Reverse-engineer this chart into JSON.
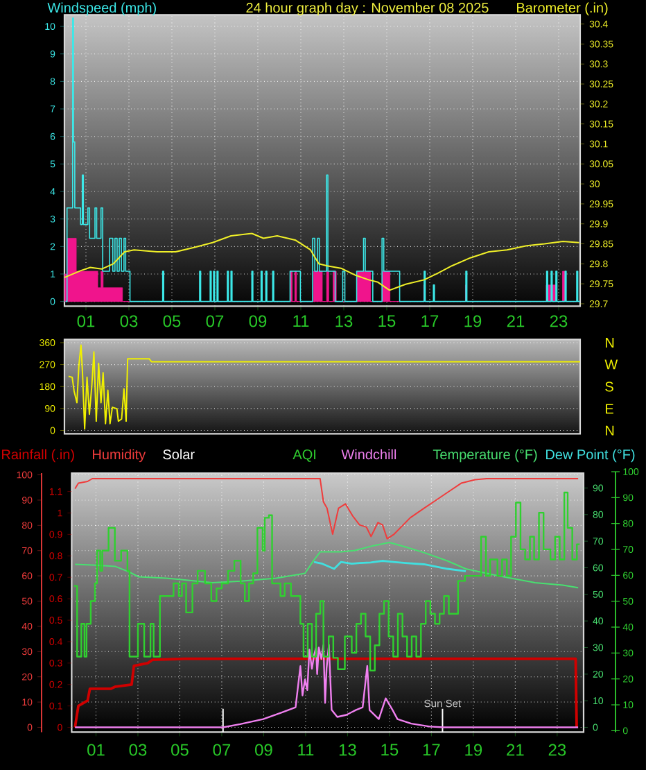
{
  "chart_data": [
    {
      "type": "line",
      "title": "24 hour graph day : November 08 2025",
      "ylabel": "Windspeed (mph)",
      "y2label": "Barometer (.in)",
      "xlim": [
        0,
        24
      ],
      "xticks": [
        {
          "value": 1,
          "label": "01"
        },
        {
          "value": 3,
          "label": "03"
        },
        {
          "value": 5,
          "label": "05"
        },
        {
          "value": 7,
          "label": "07"
        },
        {
          "value": 9,
          "label": "09"
        },
        {
          "value": 11,
          "label": "11"
        },
        {
          "value": 13,
          "label": "13"
        },
        {
          "value": 15,
          "label": "15"
        },
        {
          "value": 17,
          "label": "17"
        },
        {
          "value": 19,
          "label": "19"
        },
        {
          "value": 21,
          "label": "21"
        },
        {
          "value": 23,
          "label": "23"
        }
      ],
      "ylim": [
        -0.17,
        10.42
      ],
      "yticks": [
        0,
        1,
        2,
        3,
        4,
        5,
        6,
        7,
        8,
        9,
        10
      ],
      "y2lim": [
        29.694,
        30.423
      ],
      "y2ticks": [
        29.7,
        29.75,
        29.8,
        29.85,
        29.9,
        29.95,
        30,
        30.05,
        30.1,
        30.15,
        30.2,
        30.25,
        30.3,
        30.35,
        30.4
      ],
      "grid": true,
      "series": [
        {
          "type": "area",
          "color": "#f0148c",
          "x": [
            0,
            0,
            0.12,
            0.12,
            0.55,
            0.55,
            1.55,
            1.55,
            1.7,
            1.7,
            1.8,
            1.8,
            2.7,
            2.7,
            10.5,
            10.5,
            10.6,
            10.6,
            10.72,
            10.72,
            10.8,
            10.8,
            11.6,
            11.6,
            12.0,
            12.0,
            12.2,
            12.2,
            12.3,
            12.3,
            12.5,
            12.5,
            12.65,
            12.65,
            13.6,
            13.6,
            14.25,
            14.25,
            14.8,
            14.8,
            15.15,
            15.15,
            16.72,
            16.72,
            16.77,
            16.77,
            18.66,
            18.66,
            18.71,
            18.71,
            22.42,
            22.42,
            22.9,
            22.9,
            23.18,
            23.18,
            23.32,
            23.32,
            24
          ],
          "values": [
            0,
            1.0,
            1.0,
            2.3,
            2.3,
            1.1,
            1.1,
            0.5,
            0.5,
            1.1,
            1.1,
            0.5,
            0.5,
            0,
            0,
            1.1,
            1.1,
            0,
            0,
            1.1,
            1.1,
            0,
            0,
            1.1,
            1.1,
            0,
            0,
            1.1,
            1.1,
            0,
            0,
            1.1,
            1.1,
            0,
            0,
            1.1,
            1.1,
            0,
            0,
            1.1,
            1.1,
            0,
            0,
            0.6,
            0.6,
            0,
            0,
            0.6,
            0.6,
            0,
            0,
            0.6,
            0.6,
            0,
            0,
            1.1,
            1.1,
            0,
            0
          ]
        },
        {
          "type": "step",
          "color": "#3ce8e8",
          "x": [
            0.05,
            0.12,
            0.38,
            0.42,
            0.48,
            0.75,
            0.83,
            0.88,
            1.09,
            1.17,
            1.42,
            1.5,
            1.7,
            1.78,
            2.1,
            2.25,
            2.35,
            2.45,
            2.55,
            2.65,
            2.77,
            2.85,
            3.05,
            4.57,
            4.62,
            6.29,
            6.34,
            6.78,
            6.83,
            6.94,
            6.99,
            7.1,
            7.15,
            7.58,
            7.63,
            7.75,
            7.8,
            8.72,
            8.77,
            9.15,
            9.2,
            9.37,
            9.42,
            9.69,
            9.74,
            10.5,
            10.98,
            11.55,
            11.65,
            11.78,
            11.86,
            12.2,
            12.26,
            12.6,
            12.95,
            13.05,
            13.6,
            13.92,
            14.0,
            14.35,
            14.78,
            14.86,
            15.6,
            16.74,
            16.79,
            17.17,
            17.22,
            18.68,
            18.73,
            22.44,
            22.49,
            22.65,
            22.7,
            22.87,
            22.92,
            23.3,
            23.35,
            23.84,
            23.89,
            24
          ],
          "values": [
            0,
            3.4,
            10.3,
            5.8,
            3.4,
            2.8,
            4.6,
            2.8,
            3.4,
            2.3,
            3.4,
            2.3,
            3.4,
            1.1,
            2.3,
            1.1,
            2.3,
            1.1,
            2.3,
            1.1,
            2.3,
            1.1,
            0,
            1.1,
            0,
            1.1,
            0,
            1.1,
            0,
            1.1,
            0,
            1.1,
            0,
            1.1,
            0,
            1.1,
            0,
            1.1,
            0,
            1.1,
            0,
            1.1,
            0,
            1.1,
            0,
            1.1,
            0,
            2.3,
            1.1,
            2.3,
            1.1,
            4.6,
            1.1,
            0,
            1.1,
            0,
            1.1,
            2.3,
            1.1,
            0,
            2.3,
            1.1,
            0,
            1.1,
            0,
            0.6,
            0,
            1.1,
            0,
            1.1,
            0,
            1.1,
            0,
            1.1,
            0,
            1.1,
            0,
            1.1,
            0,
            0
          ]
        },
        {
          "type": "line",
          "axis": "y2",
          "color": "#f0f028",
          "x": [
            0.01,
            0.76,
            1.2,
            1.73,
            2.27,
            2.8,
            3.24,
            4.31,
            5.17,
            6.03,
            6.89,
            7.75,
            8.72,
            9.26,
            9.9,
            10.76,
            11.45,
            11.84,
            12.23,
            12.87,
            13.52,
            14.16,
            14.59,
            15.13,
            15.88,
            16.74,
            17.39,
            18.03,
            18.89,
            19.75,
            20.6,
            21.47,
            22.34,
            23.2,
            23.95
          ],
          "values": [
            29.766,
            29.783,
            29.791,
            29.787,
            29.8,
            29.83,
            29.835,
            29.83,
            29.83,
            29.841,
            29.853,
            29.87,
            29.876,
            29.864,
            29.87,
            29.859,
            29.835,
            29.8,
            29.795,
            29.789,
            29.772,
            29.76,
            29.754,
            29.734,
            29.749,
            29.76,
            29.777,
            29.795,
            29.815,
            29.83,
            29.835,
            29.845,
            29.85,
            29.856,
            29.853
          ]
        }
      ]
    },
    {
      "type": "line",
      "xlim": [
        0,
        24
      ],
      "ylim": [
        -14,
        373
      ],
      "yticks": [
        0,
        90,
        180,
        270,
        360
      ],
      "grid": "y",
      "tick_labels": "y",
      "annotations": [
        "N",
        "W",
        "S",
        "E",
        "N"
      ],
      "series": [
        {
          "color": "#f0f000",
          "x": [
            0.19,
            0.36,
            0.45,
            0.58,
            0.67,
            0.77,
            0.84,
            0.94,
            1.05,
            1.16,
            1.27,
            1.37,
            1.48,
            1.59,
            1.7,
            1.8,
            1.91,
            2.02,
            2.12,
            2.23,
            2.44,
            2.51,
            2.66,
            2.77,
            2.87,
            2.94,
            3.94,
            4.05,
            24
          ],
          "values": [
            222,
            218,
            161,
            114,
            265,
            350,
            237,
            6,
            218,
            66,
            180,
            322,
            38,
            275,
            114,
            237,
            28,
            165,
            28,
            95,
            89,
            38,
            47,
            171,
            38,
            294,
            294,
            282,
            282
          ]
        }
      ]
    },
    {
      "type": "line",
      "legend": "top",
      "xlim": [
        -0.16,
        24.26
      ],
      "xticks": [
        {
          "value": 1,
          "label": "01"
        },
        {
          "value": 3,
          "label": "03"
        },
        {
          "value": 5,
          "label": "05"
        },
        {
          "value": 7,
          "label": "07"
        },
        {
          "value": 9,
          "label": "09"
        },
        {
          "value": 11,
          "label": "11"
        },
        {
          "value": 13,
          "label": "13"
        },
        {
          "value": 15,
          "label": "15"
        },
        {
          "value": 17,
          "label": "17"
        },
        {
          "value": 19,
          "label": "19"
        },
        {
          "value": 21,
          "label": "21"
        },
        {
          "value": 23,
          "label": "23"
        }
      ],
      "ylim": [
        -0.022,
        1.186
      ],
      "yticks": [
        0,
        0.1,
        0.2,
        0.3,
        0.4,
        0.5,
        0.6,
        0.7,
        0.8,
        0.9,
        1,
        1.1
      ],
      "y2lim": [
        -1.8,
        95.6
      ],
      "y2ticks": [
        0,
        10,
        20,
        30,
        40,
        50,
        60,
        70,
        80,
        90
      ],
      "y3lim": [
        -1.9,
        100.7
      ],
      "y3ticks": [
        0,
        10,
        20,
        30,
        40,
        50,
        60,
        70,
        80,
        90,
        100
      ],
      "grid": true,
      "ref_lines": [
        {
          "axis": "x",
          "value": 7.06,
          "color": "#ffffff"
        },
        {
          "axis": "x",
          "value": 17.53,
          "label": "Sun Set",
          "color": "#ffffff"
        }
      ],
      "annotations": [
        "Solar",
        "0",
        "10",
        "20",
        "30",
        "40",
        "50",
        "60",
        "70",
        "80",
        "90",
        "100"
      ],
      "series": [
        {
          "name": "Rainfall (.in)",
          "color": "#d00000",
          "x": [
            0,
            0.06,
            0.16,
            0.6,
            0.71,
            1.7,
            1.93,
            2.7,
            2.81,
            3.47,
            3.69,
            5.23,
            23.88,
            23.93
          ],
          "values": [
            0,
            0.04,
            0.1,
            0.125,
            0.18,
            0.18,
            0.19,
            0.2,
            0.287,
            0.3,
            0.315,
            0.32,
            0.32,
            0
          ]
        },
        {
          "name": "Humidity",
          "axis": "y3",
          "color": "#f03c3c",
          "x": [
            0,
            0.16,
            0.6,
            0.82,
            11.69,
            11.85,
            12.02,
            12.29,
            12.57,
            12.9,
            13.24,
            13.57,
            13.9,
            14.12,
            14.45,
            14.67,
            14.89,
            15.22,
            15.55,
            15.99,
            16.65,
            17.1,
            17.76,
            18.42,
            19.08,
            19.63,
            24
          ],
          "values": [
            94.5,
            96.7,
            97.4,
            98.5,
            98.5,
            89.3,
            86.8,
            76.5,
            86.8,
            88.5,
            83.8,
            80.2,
            79.3,
            75.6,
            81.1,
            80.2,
            74.7,
            76.5,
            79.3,
            83,
            86.8,
            89.3,
            93,
            96.7,
            98.1,
            98.5,
            98.5
          ]
        },
        {
          "name": "AQI",
          "type": "step",
          "axis": "y3",
          "color": "#30d030",
          "x": [
            -0.05,
            0.1,
            0.3,
            0.45,
            0.55,
            0.75,
            0.95,
            1.05,
            1.2,
            1.3,
            1.6,
            1.9,
            2.2,
            2.5,
            2.6,
            3.0,
            3.3,
            3.6,
            3.75,
            4.05,
            4.7,
            4.95,
            5.1,
            5.3,
            5.6,
            5.85,
            6.2,
            6.5,
            6.75,
            7.0,
            7.3,
            7.6,
            7.9,
            8.1,
            8.3,
            8.5,
            8.7,
            8.95,
            9.05,
            9.25,
            9.4,
            9.8,
            10.0,
            10.3,
            10.75,
            10.9,
            11.1,
            11.3,
            11.5,
            11.7,
            11.85,
            12.1,
            12.32,
            12.54,
            12.87,
            13.2,
            13.42,
            13.64,
            13.86,
            14.08,
            14.3,
            14.52,
            14.74,
            14.96,
            15.18,
            15.4,
            15.62,
            15.84,
            16.06,
            16.28,
            16.5,
            16.73,
            16.95,
            17.17,
            17.39,
            17.6,
            17.83,
            18.27,
            18.6,
            19.15,
            19.37,
            19.6,
            19.8,
            20.15,
            20.37,
            20.6,
            20.8,
            21.03,
            21.25,
            21.47,
            21.7,
            21.9,
            22.13,
            22.35,
            22.68,
            22.9,
            23.12,
            23.34,
            23.5,
            23.72,
            23.94,
            24.07
          ],
          "values": [
            56,
            28,
            41,
            28,
            41,
            50,
            57,
            70,
            62,
            70,
            79,
            66,
            70,
            62,
            28,
            41,
            28,
            41,
            28,
            52,
            57,
            52,
            57,
            45.5,
            57,
            62,
            57,
            50,
            55,
            57,
            62,
            66,
            57,
            50,
            57,
            61,
            79,
            70,
            83,
            84,
            57,
            52,
            57,
            52,
            41,
            28,
            41,
            28,
            45,
            50,
            28,
            36,
            27.5,
            23,
            36,
            29.5,
            41,
            45,
            36,
            22.5,
            32.5,
            45,
            50,
            36,
            28,
            45,
            36,
            28,
            36,
            28,
            41,
            50,
            45,
            41,
            45,
            52,
            45,
            58,
            60,
            60,
            75.5,
            60,
            66.5,
            60,
            66.5,
            60,
            75.5,
            89,
            70.5,
            66.5,
            75.5,
            66.5,
            85,
            70.5,
            66.5,
            75.5,
            66.5,
            93,
            79,
            66.5,
            72.5,
            72.5
          ]
        },
        {
          "name": "Windchill",
          "axis": "y2",
          "color": "#f080f0",
          "x": [
            0,
            7.06,
            7.88,
            8.98,
            9.86,
            10.52,
            10.75,
            10.85,
            10.97,
            11.08,
            11.18,
            11.3,
            11.41,
            11.5,
            11.55,
            11.63,
            11.75,
            11.85,
            11.93,
            12.0,
            12.11,
            12.24,
            12.51,
            12.95,
            13.39,
            13.72,
            13.94,
            14.05,
            14.49,
            14.82,
            15.15,
            15.38,
            16.04,
            16.92,
            17.58,
            24
          ],
          "values": [
            0,
            0,
            1.2,
            3.1,
            5.6,
            7.5,
            23,
            12,
            18,
            14,
            29.2,
            22,
            27.4,
            30,
            20,
            30,
            25.7,
            30.9,
            9.2,
            22.2,
            31,
            6.6,
            3.9,
            4.7,
            6.5,
            7.5,
            23.1,
            6.5,
            3.1,
            10.9,
            6.5,
            3.1,
            1.4,
            0.3,
            0,
            0
          ]
        },
        {
          "name": "Temperature (°F)",
          "axis": "y2",
          "color": "#48e070",
          "x": [
            0,
            1.0,
            1.93,
            2.59,
            3.03,
            4.35,
            6.55,
            7.9,
            9.6,
            10.97,
            11.36,
            11.7,
            12.69,
            13.35,
            14.23,
            15.0,
            15.77,
            16.65,
            17.76,
            18.64,
            20.18,
            21.94,
            23.27,
            24
          ],
          "values": [
            61.3,
            61.0,
            60.5,
            58.4,
            56.6,
            56.1,
            54.4,
            55.0,
            56.1,
            57.9,
            62.5,
            66.0,
            66.0,
            66.5,
            68.3,
            69.5,
            67.8,
            65.7,
            62.6,
            59.6,
            57.0,
            54.4,
            53.5,
            52.5
          ]
        },
        {
          "name": "Dew Point (°F)",
          "axis": "y2",
          "color": "#40e0e0",
          "x": [
            11.4,
            11.8,
            12.36,
            12.69,
            13.2,
            13.57,
            14.1,
            14.67,
            15.2,
            15.77,
            16.65,
            17.76,
            18.64
          ],
          "values": [
            62.2,
            61.5,
            59.6,
            62.2,
            61.5,
            61.8,
            62.0,
            62.6,
            62.2,
            61.8,
            61.3,
            59.6,
            58.7
          ]
        }
      ]
    }
  ]
}
